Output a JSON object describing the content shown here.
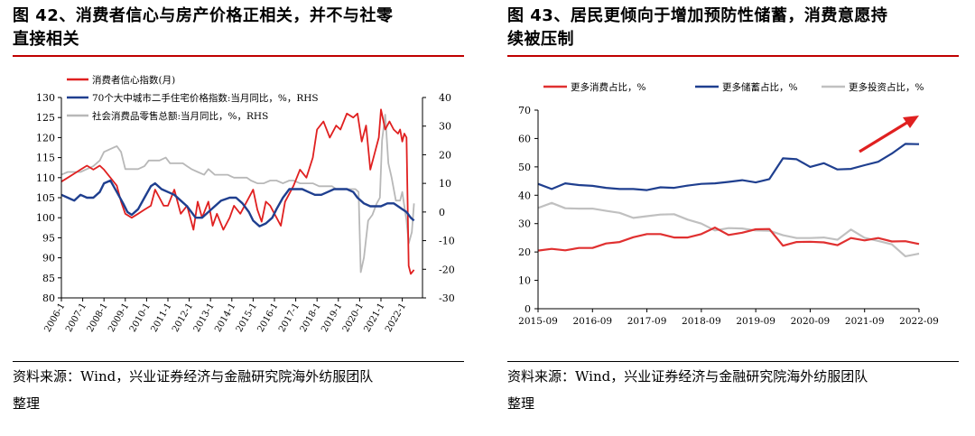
{
  "left": {
    "title_line1": "图 42、消费者信心与房产价格正相关，并不与社零",
    "title_line2": "直接相关",
    "source_line1": "资料来源：Wind，兴业证券经济与金融研究院海外纺服团队",
    "source_line2": "整理"
  },
  "right": {
    "title_line1": "图 43、居民更倾向于增加预防性储蓄，消费意愿持",
    "title_line2": "续被压制",
    "source_line1": "资料来源：Wind，兴业证券经济与金融研究院海外纺服团队",
    "source_line2": "整理"
  },
  "chart_data": [
    {
      "type": "line",
      "title": "",
      "y_left_lim": [
        80,
        130
      ],
      "y_left_ticks": [
        "130",
        "125",
        "120",
        "115",
        "110",
        "105",
        "100",
        "95",
        "90",
        "85",
        "80"
      ],
      "y_right_lim": [
        -30,
        40
      ],
      "y_right_ticks": [
        "40",
        "30",
        "20",
        "10",
        "0",
        "-10",
        "-20",
        "-30"
      ],
      "x_lim": [
        2006.0,
        2022.95
      ],
      "x_ticks": [
        "2006-1",
        "2007-1",
        "2008-1",
        "2009-1",
        "2010-1",
        "2011-1",
        "2012-1",
        "2013-1",
        "2014-1",
        "2015-1",
        "2016-1",
        "2017-1",
        "2018-1",
        "2019-1",
        "2020-1",
        "2021-1",
        "2022-1"
      ],
      "legend_position": "top-left",
      "series": [
        {
          "name": "消费者信心指数(月)",
          "axis": "left",
          "color": "#e02020",
          "points": [
            [
              2006.0,
              109
            ],
            [
              2006.3,
              110
            ],
            [
              2006.6,
              111
            ],
            [
              2006.9,
              112
            ],
            [
              2007.2,
              113
            ],
            [
              2007.5,
              112
            ],
            [
              2007.8,
              113
            ],
            [
              2008.0,
              112
            ],
            [
              2008.3,
              110
            ],
            [
              2008.6,
              108
            ],
            [
              2008.8,
              104
            ],
            [
              2009.0,
              101
            ],
            [
              2009.3,
              100
            ],
            [
              2009.6,
              101
            ],
            [
              2009.9,
              102
            ],
            [
              2010.2,
              103
            ],
            [
              2010.4,
              107
            ],
            [
              2010.6,
              105
            ],
            [
              2010.8,
              103
            ],
            [
              2011.0,
              103
            ],
            [
              2011.3,
              107
            ],
            [
              2011.6,
              101
            ],
            [
              2011.9,
              103
            ],
            [
              2012.0,
              101
            ],
            [
              2012.2,
              97
            ],
            [
              2012.4,
              104
            ],
            [
              2012.6,
              100
            ],
            [
              2012.9,
              104
            ],
            [
              2013.1,
              98
            ],
            [
              2013.3,
              101
            ],
            [
              2013.6,
              97
            ],
            [
              2013.9,
              100
            ],
            [
              2014.1,
              103
            ],
            [
              2014.4,
              101
            ],
            [
              2014.7,
              104
            ],
            [
              2015.0,
              107
            ],
            [
              2015.2,
              102
            ],
            [
              2015.4,
              99
            ],
            [
              2015.6,
              104
            ],
            [
              2015.8,
              103
            ],
            [
              2016.0,
              101
            ],
            [
              2016.3,
              98
            ],
            [
              2016.5,
              104
            ],
            [
              2016.7,
              106
            ],
            [
              2016.9,
              108
            ],
            [
              2017.2,
              112
            ],
            [
              2017.5,
              110
            ],
            [
              2017.8,
              115
            ],
            [
              2018.0,
              122
            ],
            [
              2018.3,
              124
            ],
            [
              2018.6,
              120
            ],
            [
              2018.9,
              123
            ],
            [
              2019.1,
              122
            ],
            [
              2019.4,
              126
            ],
            [
              2019.7,
              125
            ],
            [
              2019.9,
              126
            ],
            [
              2020.1,
              119
            ],
            [
              2020.3,
              123
            ],
            [
              2020.5,
              112
            ],
            [
              2020.7,
              116
            ],
            [
              2020.9,
              120
            ],
            [
              2021.0,
              127
            ],
            [
              2021.2,
              122
            ],
            [
              2021.4,
              124
            ],
            [
              2021.6,
              122
            ],
            [
              2021.8,
              121
            ],
            [
              2021.9,
              122
            ],
            [
              2022.0,
              119
            ],
            [
              2022.1,
              121
            ],
            [
              2022.2,
              120
            ],
            [
              2022.3,
              88
            ],
            [
              2022.4,
              86
            ],
            [
              2022.55,
              87
            ]
          ]
        },
        {
          "name": "70个大中城市二手住宅价格指数:当月同比，%，RHS",
          "axis": "right",
          "color": "#1f3f8f",
          "points": [
            [
              2006.0,
              6
            ],
            [
              2006.3,
              5
            ],
            [
              2006.6,
              4
            ],
            [
              2006.9,
              6
            ],
            [
              2007.2,
              5
            ],
            [
              2007.5,
              5
            ],
            [
              2007.8,
              7
            ],
            [
              2008.0,
              10
            ],
            [
              2008.3,
              11
            ],
            [
              2008.6,
              7
            ],
            [
              2008.9,
              3
            ],
            [
              2009.1,
              0
            ],
            [
              2009.3,
              -1
            ],
            [
              2009.6,
              1
            ],
            [
              2009.9,
              5
            ],
            [
              2010.2,
              9
            ],
            [
              2010.4,
              10
            ],
            [
              2010.7,
              8
            ],
            [
              2011.0,
              7
            ],
            [
              2011.3,
              6
            ],
            [
              2011.6,
              4
            ],
            [
              2011.9,
              2
            ],
            [
              2012.1,
              0
            ],
            [
              2012.3,
              -2
            ],
            [
              2012.6,
              -2
            ],
            [
              2012.9,
              0
            ],
            [
              2013.2,
              2
            ],
            [
              2013.5,
              4
            ],
            [
              2013.9,
              5
            ],
            [
              2014.2,
              5
            ],
            [
              2014.5,
              3
            ],
            [
              2014.8,
              0
            ],
            [
              2015.0,
              -3
            ],
            [
              2015.3,
              -5
            ],
            [
              2015.6,
              -4
            ],
            [
              2015.9,
              -2
            ],
            [
              2016.1,
              1
            ],
            [
              2016.4,
              5
            ],
            [
              2016.7,
              8
            ],
            [
              2017.0,
              8
            ],
            [
              2017.3,
              8
            ],
            [
              2017.6,
              7
            ],
            [
              2017.9,
              6
            ],
            [
              2018.2,
              6
            ],
            [
              2018.5,
              7
            ],
            [
              2018.8,
              8
            ],
            [
              2019.1,
              8
            ],
            [
              2019.4,
              8
            ],
            [
              2019.7,
              7
            ],
            [
              2019.9,
              5
            ],
            [
              2020.2,
              3
            ],
            [
              2020.5,
              2
            ],
            [
              2020.8,
              2
            ],
            [
              2021.0,
              2
            ],
            [
              2021.3,
              3
            ],
            [
              2021.6,
              3
            ],
            [
              2021.8,
              2
            ],
            [
              2022.0,
              1
            ],
            [
              2022.2,
              0
            ],
            [
              2022.4,
              -2
            ],
            [
              2022.55,
              -3
            ]
          ]
        },
        {
          "name": "社会消费品零售总额:当月同比，%，RHS",
          "axis": "right",
          "color": "#b8b8b8",
          "points": [
            [
              2006.0,
              13
            ],
            [
              2006.3,
              14
            ],
            [
              2006.6,
              14
            ],
            [
              2006.9,
              14
            ],
            [
              2007.2,
              15
            ],
            [
              2007.5,
              16
            ],
            [
              2007.8,
              18
            ],
            [
              2008.0,
              21
            ],
            [
              2008.3,
              22
            ],
            [
              2008.6,
              23
            ],
            [
              2008.8,
              21
            ],
            [
              2009.0,
              15
            ],
            [
              2009.3,
              15
            ],
            [
              2009.6,
              15
            ],
            [
              2009.9,
              16
            ],
            [
              2010.1,
              18
            ],
            [
              2010.3,
              18
            ],
            [
              2010.6,
              18
            ],
            [
              2010.9,
              19
            ],
            [
              2011.1,
              17
            ],
            [
              2011.4,
              17
            ],
            [
              2011.7,
              17
            ],
            [
              2011.9,
              16
            ],
            [
              2012.1,
              15
            ],
            [
              2012.4,
              14
            ],
            [
              2012.7,
              13
            ],
            [
              2012.9,
              15
            ],
            [
              2013.2,
              13
            ],
            [
              2013.5,
              13
            ],
            [
              2013.8,
              13
            ],
            [
              2014.1,
              12
            ],
            [
              2014.4,
              12
            ],
            [
              2014.7,
              12
            ],
            [
              2014.9,
              11
            ],
            [
              2015.2,
              10
            ],
            [
              2015.5,
              10
            ],
            [
              2015.8,
              11
            ],
            [
              2016.1,
              11
            ],
            [
              2016.4,
              10
            ],
            [
              2016.7,
              11
            ],
            [
              2016.9,
              11
            ],
            [
              2017.2,
              10
            ],
            [
              2017.5,
              10
            ],
            [
              2017.8,
              10
            ],
            [
              2018.1,
              9
            ],
            [
              2018.4,
              9
            ],
            [
              2018.7,
              9
            ],
            [
              2018.9,
              8
            ],
            [
              2019.2,
              8
            ],
            [
              2019.5,
              8
            ],
            [
              2019.8,
              8
            ],
            [
              2019.95,
              7
            ],
            [
              2020.05,
              -21
            ],
            [
              2020.2,
              -16
            ],
            [
              2020.4,
              -3
            ],
            [
              2020.6,
              -1
            ],
            [
              2020.8,
              3
            ],
            [
              2020.95,
              5
            ],
            [
              2021.05,
              25
            ],
            [
              2021.2,
              34
            ],
            [
              2021.35,
              17
            ],
            [
              2021.5,
              12
            ],
            [
              2021.7,
              4
            ],
            [
              2021.9,
              4
            ],
            [
              2022.0,
              7
            ],
            [
              2022.1,
              2
            ],
            [
              2022.2,
              -3
            ],
            [
              2022.3,
              -11
            ],
            [
              2022.45,
              -7
            ],
            [
              2022.55,
              3
            ]
          ]
        }
      ]
    },
    {
      "type": "line",
      "title": "",
      "ylim": [
        0,
        70
      ],
      "y_ticks": [
        "70",
        "60",
        "50",
        "40",
        "30",
        "20",
        "10",
        "0"
      ],
      "x_lim": [
        0,
        28
      ],
      "x_ticks": [
        "2015-09",
        "2016-09",
        "2017-09",
        "2018-09",
        "2019-09",
        "2020-09",
        "2021-09",
        "2022-09"
      ],
      "legend_position": "top",
      "arrow_color": "#e02020",
      "series": [
        {
          "name": "更多消费占比，%",
          "color": "#e03030",
          "values": [
            20.5,
            21.1,
            20.6,
            21.4,
            21.4,
            23,
            23.5,
            25.2,
            26.3,
            26.3,
            25.1,
            25.1,
            26.3,
            28.6,
            26,
            26.8,
            28,
            28.1,
            22.2,
            23.5,
            23.6,
            23.4,
            22.4,
            24.9,
            24.1,
            24.9,
            23.7,
            23.8,
            22.8
          ]
        },
        {
          "name": "更多储蓄占比，%",
          "color": "#1f3f8f",
          "values": [
            44,
            42.2,
            44.2,
            43.6,
            43.3,
            42.6,
            42.2,
            42.2,
            41.8,
            42.8,
            42.6,
            43.4,
            44,
            44.2,
            44.7,
            45.3,
            44.5,
            45.7,
            53,
            52.7,
            50,
            51.3,
            49.1,
            49.3,
            50.6,
            51.8,
            54.7,
            58.1,
            58
          ]
        },
        {
          "name": "更多投资占比，%",
          "color": "#c0c0c0",
          "values": [
            35.5,
            37.3,
            35.4,
            35.3,
            35.3,
            34.5,
            33.8,
            32,
            32.6,
            33.2,
            33.3,
            31.4,
            30,
            27.6,
            28.4,
            28.3,
            27.6,
            27.5,
            25.9,
            24.9,
            24.9,
            25.1,
            24.3,
            27.9,
            25,
            23.9,
            22.7,
            18.5,
            19.4
          ]
        }
      ]
    }
  ]
}
